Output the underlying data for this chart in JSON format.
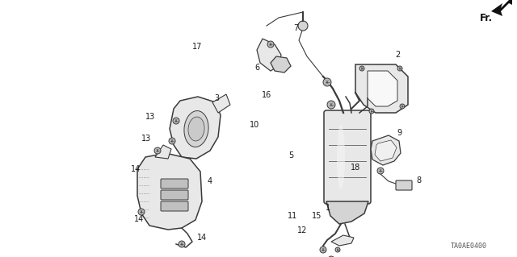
{
  "bg_color": "#ffffff",
  "fig_width": 6.4,
  "fig_height": 3.19,
  "dpi": 100,
  "watermark": "TA0AE0400",
  "fr_label": "Fr.",
  "label_fontsize": 7.0,
  "label_color": "#1a1a1a",
  "dc": "#3a3a3a",
  "lw_main": 1.1,
  "lw_detail": 0.7,
  "face_light": "#e8e8e8",
  "face_mid": "#d4d4d4",
  "face_dark": "#c0c0c0"
}
